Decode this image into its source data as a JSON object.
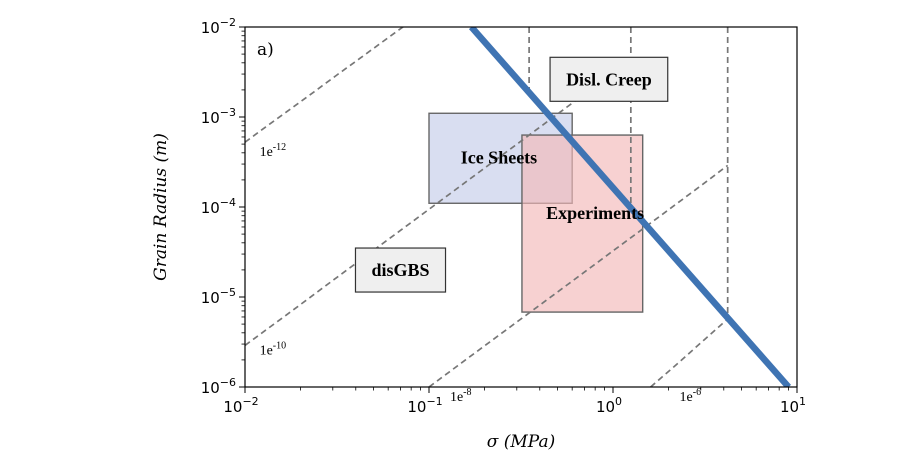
{
  "chart_data": {
    "type": "line",
    "panel_label": "a)",
    "xlabel": "σ (MPa)",
    "ylabel": "Grain Radius (m)",
    "xscale": "log",
    "yscale": "log",
    "xlim": [
      0.01,
      10
    ],
    "ylim": [
      1e-06,
      0.01
    ],
    "x_ticks": [
      {
        "value": 0.01,
        "base": "10",
        "exp": "−2"
      },
      {
        "value": 0.1,
        "base": "10",
        "exp": "−1"
      },
      {
        "value": 1,
        "base": "10",
        "exp": "0"
      },
      {
        "value": 10,
        "base": "10",
        "exp": "1"
      }
    ],
    "y_ticks": [
      {
        "value": 1e-06,
        "base": "10",
        "exp": "−6"
      },
      {
        "value": 1e-05,
        "base": "10",
        "exp": "−5"
      },
      {
        "value": 0.0001,
        "base": "10",
        "exp": "−4"
      },
      {
        "value": 0.001,
        "base": "10",
        "exp": "−3"
      },
      {
        "value": 0.01,
        "base": "10",
        "exp": "−2"
      }
    ],
    "boundary_line": {
      "color": "#3f74b3",
      "x": [
        0.17,
        9.0
      ],
      "y": [
        0.01,
        1e-06
      ]
    },
    "contours": [
      {
        "base": "1e",
        "exp": "-12",
        "label_x": 0.012,
        "label_y": 0.00037,
        "x": [
          0.01,
          0.0133,
          0.0178,
          0.0237,
          0.0316,
          0.0422,
          0.0562,
          0.075,
          0.1,
          0.133,
          0.178,
          0.237,
          0.316,
          0.35
        ],
        "y": [
          0.000525,
          0.000807,
          0.00124,
          0.0019,
          0.00293,
          0.0045,
          0.0069,
          0.0106,
          0.016,
          0.0245,
          0.0378,
          0.058,
          0.089,
          0.105
        ],
        "vertical_x": 0.35
      },
      {
        "base": "1e",
        "exp": "-10",
        "label_x": 0.012,
        "label_y": 2.3e-06,
        "x": [
          0.01,
          0.0178,
          0.0316,
          0.0562,
          0.1,
          0.178,
          0.316,
          0.562,
          1.0,
          1.25
        ],
        "y": [
          2.9e-06,
          6.9e-06,
          1.65e-05,
          3.95e-05,
          9.44e-05,
          0.000226,
          0.000539,
          0.00129,
          0.00307,
          0.0043
        ],
        "vertical_x": 1.25
      },
      {
        "base": "1e",
        "exp": "-8",
        "label_x": 0.13,
        "label_y": 7e-07,
        "x": [
          0.1,
          0.178,
          0.316,
          0.562,
          1.0,
          1.78,
          3.16,
          4.2
        ],
        "y": [
          1e-06,
          2.4e-06,
          5.7e-06,
          1.36e-05,
          3.25e-05,
          7.78e-05,
          0.000186,
          0.00029
        ],
        "vertical_x": 4.2
      },
      {
        "base": "1e",
        "exp": "-6",
        "label_x": 2.3,
        "label_y": 7e-07,
        "x": [
          1.6,
          2.25,
          3.16,
          4.2
        ],
        "y": [
          1e-06,
          1.83e-06,
          3.4e-06,
          5.7e-06
        ]
      }
    ],
    "contour_color": "#777777",
    "regions": [
      {
        "name": "Ice Sheets",
        "x0": 0.1,
        "x1": 0.6,
        "y0": 0.00011,
        "y1": 0.0011,
        "fill": "#c4cdea",
        "stroke": "#666666",
        "label_x": 0.24,
        "label_y": 0.00034
      },
      {
        "name": "Experiments",
        "x0": 0.32,
        "x1": 1.45,
        "y0": 6.8e-06,
        "y1": 0.00063,
        "fill": "#f2b9b8",
        "stroke": "#666666",
        "label_x": 0.8,
        "label_y": 8.2e-05
      }
    ],
    "labels": [
      {
        "text": "Disl. Creep",
        "x": 0.95,
        "y": 0.0025
      },
      {
        "text": "disGBS",
        "x": 0.07,
        "y": 1.9e-05
      }
    ]
  }
}
